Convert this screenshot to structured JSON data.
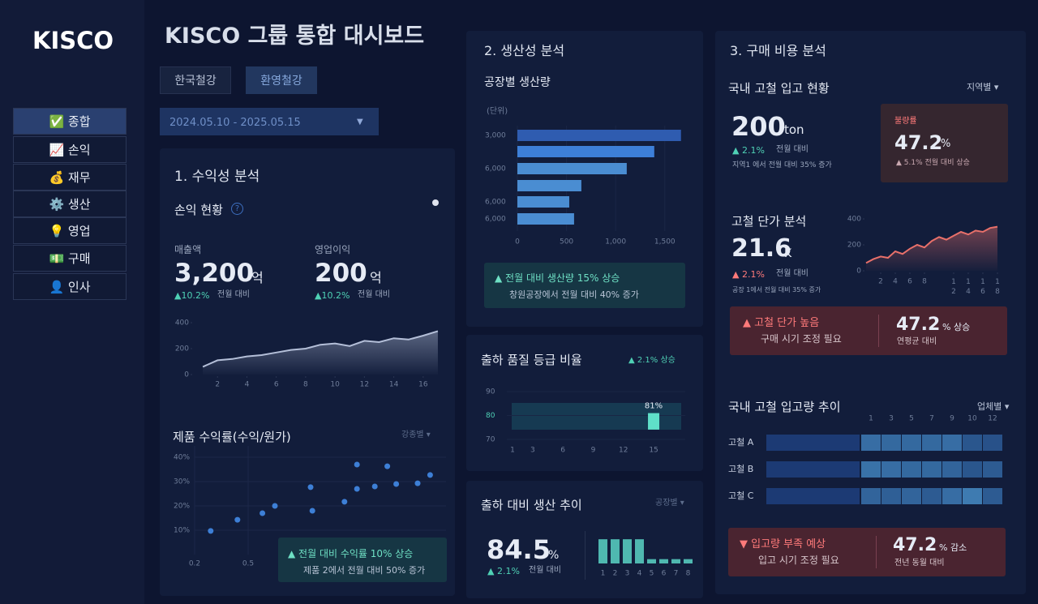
{
  "sidebar": {
    "logo": "KISCO",
    "menu": [
      "✅ 종합",
      "📈 손익",
      "💰 재무",
      "⚙️ 생산",
      "💡 영업",
      "💵 구매",
      "👤 인사"
    ]
  },
  "header": {
    "title": "KISCO 그룹 통합 대시보드",
    "tabs": [
      "한국철강",
      "환영철강"
    ],
    "date_range": "2024.05.10 - 2025.05.15",
    "dropdown_icon": "▼"
  },
  "profitability": {
    "title": "1. 수익성 분석",
    "subtitle": "손익 현황",
    "help_icon": "?",
    "kpis": [
      {
        "label": "매출액",
        "value": "3,200",
        "unit": "억",
        "change": "▲10.2%",
        "note": "전월 대비"
      },
      {
        "label": "영업이익",
        "value": "200",
        "unit": "억",
        "change": "▲10.2%",
        "note": "전월 대비"
      }
    ],
    "trend": {
      "type": "line",
      "x": [
        1,
        2,
        3,
        4,
        5,
        6,
        7,
        8,
        9,
        10,
        11,
        12,
        13,
        14,
        15,
        16,
        17
      ],
      "values": [
        60,
        110,
        120,
        140,
        150,
        170,
        190,
        200,
        230,
        240,
        220,
        260,
        250,
        280,
        270,
        300,
        335
      ],
      "xlim": [
        0,
        17.5
      ],
      "xticks": [
        2,
        4,
        6,
        8,
        10,
        12,
        14,
        16
      ],
      "ylim": [
        0,
        400
      ],
      "yticks": [
        0,
        200,
        400
      ],
      "color": "#b4bfd8"
    },
    "margin": {
      "type": "scatter",
      "title": "제품 수익률(수익/원가)",
      "filter": "강종별 ▾",
      "x": [
        0.29,
        0.44,
        0.58,
        0.65,
        0.85,
        0.86,
        1.04,
        1.11,
        1.11,
        1.21,
        1.28,
        1.33,
        1.45,
        1.52
      ],
      "values": [
        9.7,
        14.3,
        17,
        20,
        27.7,
        18,
        21.7,
        37,
        27,
        28,
        36.3,
        29,
        29.3,
        32.7
      ],
      "xlim": [
        0.1,
        1.6
      ],
      "xticks": [
        0.2,
        0.5
      ],
      "ylim": [
        0,
        44
      ],
      "yticks": [
        {
          "value": 10,
          "label": "10%"
        },
        {
          "value": 20,
          "label": "20%"
        },
        {
          "value": 30,
          "label": "30%"
        },
        {
          "value": 40,
          "label": "40%"
        }
      ],
      "color": "#3d7fd6",
      "grid": true
    },
    "callout": {
      "headline": "▲ 전월 대비 수익률 10% 상승",
      "detail": "제품 2에서 전월 대비 50% 증가"
    }
  },
  "productivity": {
    "title": "2. 생산성 분석",
    "plant_output": {
      "type": "bar",
      "orientation": "horizontal",
      "title": "공장별 생산량",
      "unit": "(단위)",
      "categories": [
        "3,000",
        null,
        "6,000",
        null,
        "6,000",
        "6,000"
      ],
      "values": [
        1665,
        1393,
        1113,
        651,
        528,
        577
      ],
      "colors": [
        "#2f5cb0",
        "#3d7fd8",
        "#4a8dd2",
        "#4a8dd2",
        "#4a8dd2",
        "#4a8dd2"
      ],
      "xlim": [
        0,
        1700
      ],
      "xticks": [
        0,
        500,
        {
          "value": 1000,
          "label": "1,000"
        },
        {
          "value": 1500,
          "label": "1,500"
        }
      ],
      "grid": true
    },
    "callout": {
      "headline": "▲ 전월 대비 생산량 15% 상승",
      "detail": "창원공장에서 전월 대비 40% 증가"
    },
    "quality": {
      "type": "bar",
      "title": "출하 품질 등급 비율",
      "badge": "▲ 2.1% 상승",
      "x": [
        15
      ],
      "values": [
        81
      ],
      "value_labels": [
        "81%"
      ],
      "color": "#5fe0c8",
      "xlim": [
        0,
        17
      ],
      "xticks": [
        1,
        3,
        6,
        9,
        12,
        15
      ],
      "ylim": [
        68,
        92
      ],
      "yticks": [
        70,
        80,
        90
      ]
    },
    "output_trend": {
      "type": "bar",
      "title": "출하 대비 생산 추이",
      "filter": "공장별 ▾",
      "kpi": {
        "value": "84.5",
        "unit": "%",
        "change": "▲ 2.1%",
        "note": "전월 대비"
      },
      "categories": [
        "1",
        "2",
        "3",
        "4",
        "5",
        "6",
        "7",
        "8"
      ],
      "values": [
        28,
        28,
        28,
        28,
        5,
        5,
        5,
        5
      ],
      "ylim": [
        0,
        30
      ],
      "color": "#4fb8b0"
    }
  },
  "purchasing": {
    "title": "3. 구매 비용 분석",
    "intake": {
      "title": "국내 고철 입고 현황",
      "filter": "지역별 ▾",
      "value": "200",
      "unit": "ton",
      "change": "▲ 2.1%",
      "note": "전월 대비",
      "detail": "지역1 에서 전월 대비 35% 증가",
      "defect": {
        "label": "불량률",
        "value": "47.2",
        "unit": "%",
        "change": "▲ 5.1% 전월 대비 상승"
      }
    },
    "unit_price": {
      "type": "line",
      "title": "고철 단가 분석",
      "value": "21.6",
      "unit": "K",
      "change": "▲ 2.1%",
      "note": "전월 대비",
      "detail": "공장 1에서 전월 대비 35% 증가",
      "x": [
        0,
        1,
        2,
        3,
        4,
        5,
        6,
        7,
        8,
        9,
        10,
        11,
        12,
        13,
        14,
        15,
        16,
        17,
        18
      ],
      "values": [
        60,
        90,
        110,
        100,
        150,
        130,
        170,
        200,
        180,
        230,
        260,
        240,
        270,
        300,
        280,
        310,
        300,
        330,
        340
      ],
      "xlim": [
        0,
        19
      ],
      "xticks": [
        2,
        4,
        6,
        8,
        12,
        14,
        16,
        18
      ],
      "ylim": [
        0,
        400
      ],
      "yticks": [
        0,
        200,
        400
      ],
      "color": "#e8706a"
    },
    "price_alert": {
      "headline": "▲ 고철 단가 높음",
      "action": "구매 시기 조정 필요",
      "value": "47.2",
      "unit": "% 상승",
      "basis": "연평균 대비"
    },
    "volume": {
      "type": "heatmap",
      "title": "국내 고철 입고량 추이",
      "filter": "업체별 ▾",
      "columns": [
        "1",
        "3",
        "5",
        "7",
        "9",
        "10",
        "12"
      ],
      "rows": [
        {
          "name": "고철 A",
          "values": [
            0.55,
            0.5,
            0.5,
            0.5,
            0.55,
            0.3,
            0.25
          ]
        },
        {
          "name": "고철 B",
          "values": [
            0.6,
            0.55,
            0.5,
            0.5,
            0.45,
            0.3,
            0.35
          ]
        },
        {
          "name": "고철 C",
          "values": [
            0.45,
            0.4,
            0.45,
            0.35,
            0.55,
            0.7,
            0.35
          ]
        }
      ]
    },
    "volume_alert": {
      "headline": "▼ 입고량 부족 예상",
      "action": "입고 시기 조정 필요",
      "value": "47.2",
      "unit": "% 감소",
      "basis": "전년 동월 대비"
    }
  }
}
